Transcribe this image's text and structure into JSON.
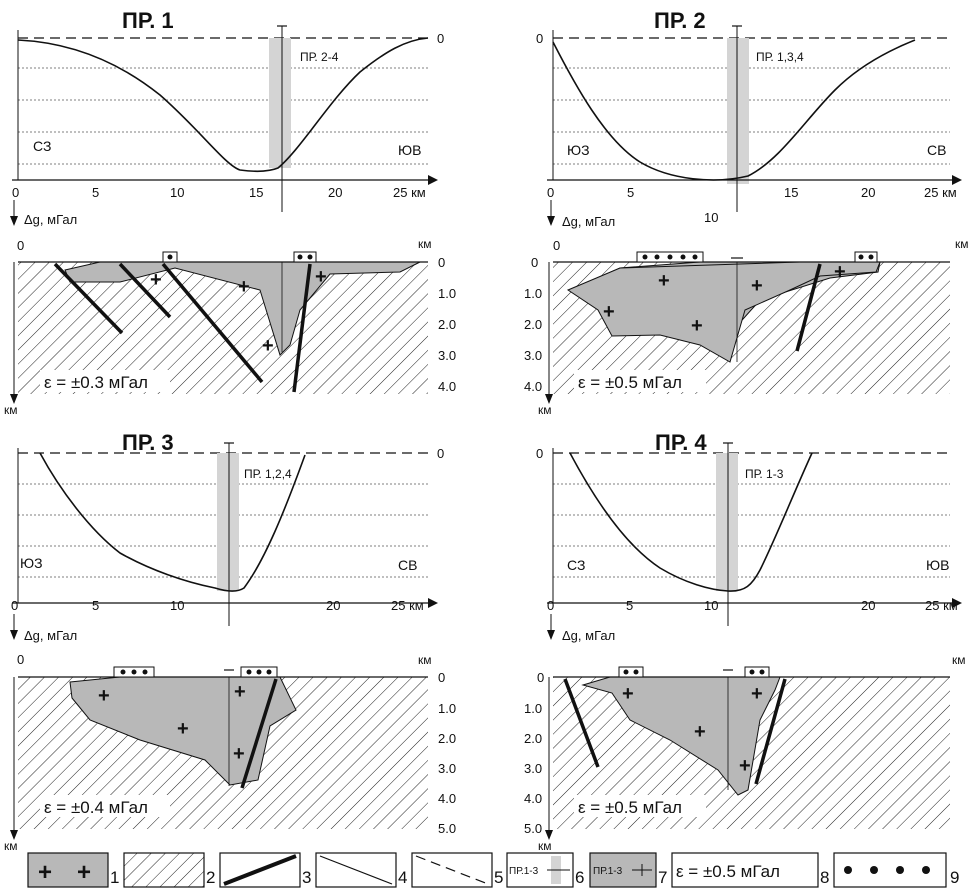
{
  "units_km": "км",
  "panels": [
    {
      "id": "p1",
      "title": "ПР. 1",
      "left_dir": "СЗ",
      "right_dir": "ЮВ",
      "cross_label": "ПР. 2-4",
      "top_zero": "0",
      "x_ticks": [
        "0",
        "5",
        "10",
        "15",
        "20",
        "25 км"
      ],
      "dg_label": "Δg, мГал",
      "depth_ticks": [
        "0",
        "1.0",
        "2.0",
        "3.0",
        "4.0"
      ],
      "depth_axis_label": "км",
      "depth_left_zero": "0",
      "depth_right_unit": "км",
      "epsilon": "ε = ±0.3 мГал",
      "dot_groups": [
        1,
        2
      ]
    },
    {
      "id": "p2",
      "title": "ПР. 2",
      "left_dir": "ЮЗ",
      "right_dir": "СВ",
      "cross_label": "ПР. 1,3,4",
      "top_zero": "0",
      "x_ticks": [
        "0",
        "5",
        "10",
        "15",
        "20",
        "25 км"
      ],
      "dg_label": "Δg, мГал",
      "depth_ticks": [
        "0",
        "1.0",
        "2.0",
        "3.0",
        "4.0"
      ],
      "depth_axis_label": "км",
      "depth_left_zero": "0",
      "depth_right_unit": "км",
      "epsilon": "ε = ±0.5 мГал",
      "dot_groups": [
        5,
        2
      ]
    },
    {
      "id": "p3",
      "title": "ПР. 3",
      "left_dir": "ЮЗ",
      "right_dir": "СВ",
      "cross_label": "ПР. 1,2,4",
      "top_zero": "0",
      "x_ticks": [
        "0",
        "5",
        "10",
        "15",
        "20",
        "25 км"
      ],
      "dg_label": "Δg, мГал",
      "depth_ticks": [
        "0",
        "1.0",
        "2.0",
        "3.0",
        "4.0",
        "5.0"
      ],
      "depth_axis_label": "км",
      "depth_left_zero": "0",
      "depth_right_unit": "км",
      "epsilon": "ε = ±0.4 мГал",
      "dot_groups": [
        3,
        3
      ]
    },
    {
      "id": "p4",
      "title": "ПР. 4",
      "left_dir": "СЗ",
      "right_dir": "ЮВ",
      "cross_label": "ПР. 1-3",
      "top_zero": "0",
      "x_ticks": [
        "0",
        "5",
        "10",
        "15",
        "20",
        "25 км"
      ],
      "dg_label": "Δg, мГал",
      "depth_ticks": [
        "0",
        "1.0",
        "2.0",
        "3.0",
        "4.0",
        "5.0"
      ],
      "depth_axis_label": "км",
      "depth_left_zero": "0",
      "depth_right_unit": "км",
      "epsilon": "ε = ±0.5 мГал",
      "dot_groups": [
        2,
        2
      ]
    }
  ],
  "legend": [
    {
      "num": "1",
      "kind": "plus-fill"
    },
    {
      "num": "2",
      "kind": "hatch"
    },
    {
      "num": "3",
      "kind": "thick-line"
    },
    {
      "num": "4",
      "kind": "thin-line"
    },
    {
      "num": "5",
      "kind": "dashed-line"
    },
    {
      "num": "6",
      "kind": "profile-mark",
      "text": "ПР.1-3"
    },
    {
      "num": "7",
      "kind": "profile-mark-gray",
      "text": "ПР.1-3"
    },
    {
      "num": "8",
      "kind": "epsilon",
      "text": "ε = ±0.5 мГал"
    },
    {
      "num": "9",
      "kind": "dots"
    }
  ],
  "colors": {
    "body_fill": "#b8b8b8",
    "projection_band": "#d4d4d4",
    "line": "#111111"
  }
}
